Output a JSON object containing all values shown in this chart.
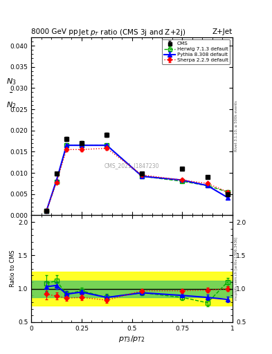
{
  "title_top": "8000 GeV pp",
  "title_right": "Z+Jet",
  "plot_title": "Jet $p_T$ ratio (CMS 3j and Z+2j)",
  "watermark": "CMS_2021_I1847230",
  "ylabel_main": "$N_3|N_2$",
  "ylabel_ratio": "Ratio to CMS",
  "xlabel": "$p_{T3}/p_{T2}$",
  "right_label_main": "Rivet 3.1.10, ≥ 500k events",
  "right_label_ratio": "mcplots.cern.ch [arXiv:1306.3436]",
  "x_data": [
    0.075,
    0.125,
    0.175,
    0.25,
    0.375,
    0.55,
    0.75,
    0.875,
    0.975
  ],
  "cms_y": [
    0.001,
    0.0098,
    0.018,
    0.017,
    0.019,
    0.0098,
    0.011,
    0.009,
    0.005
  ],
  "cms_yerr": [
    0.0001,
    0.0003,
    0.0005,
    0.0005,
    0.0005,
    0.0003,
    0.0003,
    0.0003,
    0.0002
  ],
  "herwig_y": [
    0.001,
    0.0079,
    0.0165,
    0.0165,
    0.0165,
    0.0092,
    0.008,
    0.007,
    0.0055
  ],
  "herwig_yerr": [
    0.0001,
    0.0003,
    0.0004,
    0.0004,
    0.0004,
    0.0002,
    0.0002,
    0.0002,
    0.0002
  ],
  "pythia_y": [
    0.001,
    0.0082,
    0.0165,
    0.0165,
    0.0165,
    0.0092,
    0.0083,
    0.007,
    0.0042
  ],
  "pythia_yerr": [
    0.0001,
    0.0002,
    0.0004,
    0.0004,
    0.0004,
    0.0002,
    0.0002,
    0.0002,
    0.0001
  ],
  "sherpa_y": [
    0.001,
    0.0078,
    0.0155,
    0.0155,
    0.0158,
    0.0095,
    0.0083,
    0.0075,
    0.0055
  ],
  "sherpa_yerr": [
    0.0001,
    0.0003,
    0.0004,
    0.0004,
    0.0004,
    0.0002,
    0.0002,
    0.0002,
    0.0002
  ],
  "herwig_ratio": [
    1.08,
    1.12,
    0.92,
    0.97,
    0.87,
    0.94,
    0.87,
    0.79,
    1.1
  ],
  "herwig_ratio_err": [
    0.12,
    0.08,
    0.05,
    0.05,
    0.05,
    0.04,
    0.04,
    0.05,
    0.06
  ],
  "pythia_ratio": [
    1.03,
    1.05,
    0.92,
    0.95,
    0.87,
    0.94,
    0.9,
    0.87,
    0.84
  ],
  "pythia_ratio_err": [
    0.08,
    0.05,
    0.04,
    0.04,
    0.04,
    0.03,
    0.03,
    0.04,
    0.04
  ],
  "sherpa_ratio": [
    0.92,
    0.89,
    0.86,
    0.87,
    0.83,
    0.97,
    0.97,
    0.98,
    1.0
  ],
  "sherpa_ratio_err": [
    0.08,
    0.05,
    0.04,
    0.04,
    0.04,
    0.03,
    0.03,
    0.04,
    0.04
  ],
  "cms_color": "#000000",
  "herwig_color": "#00aa00",
  "pythia_color": "#0000ff",
  "sherpa_color": "#ff0000",
  "xlim": [
    0.0,
    1.0
  ],
  "ylim_main": [
    0.0,
    0.042
  ],
  "ylim_ratio": [
    0.5,
    2.1
  ],
  "yticks_main": [
    0.0,
    0.005,
    0.01,
    0.015,
    0.02,
    0.025,
    0.03,
    0.035,
    0.04
  ],
  "yticks_ratio": [
    0.5,
    1.0,
    1.5,
    2.0
  ],
  "xticks": [
    0.0,
    0.25,
    0.5,
    0.75,
    1.0
  ],
  "xticklabels": [
    "0",
    "0.25",
    "0.5",
    "0.75",
    "1"
  ]
}
